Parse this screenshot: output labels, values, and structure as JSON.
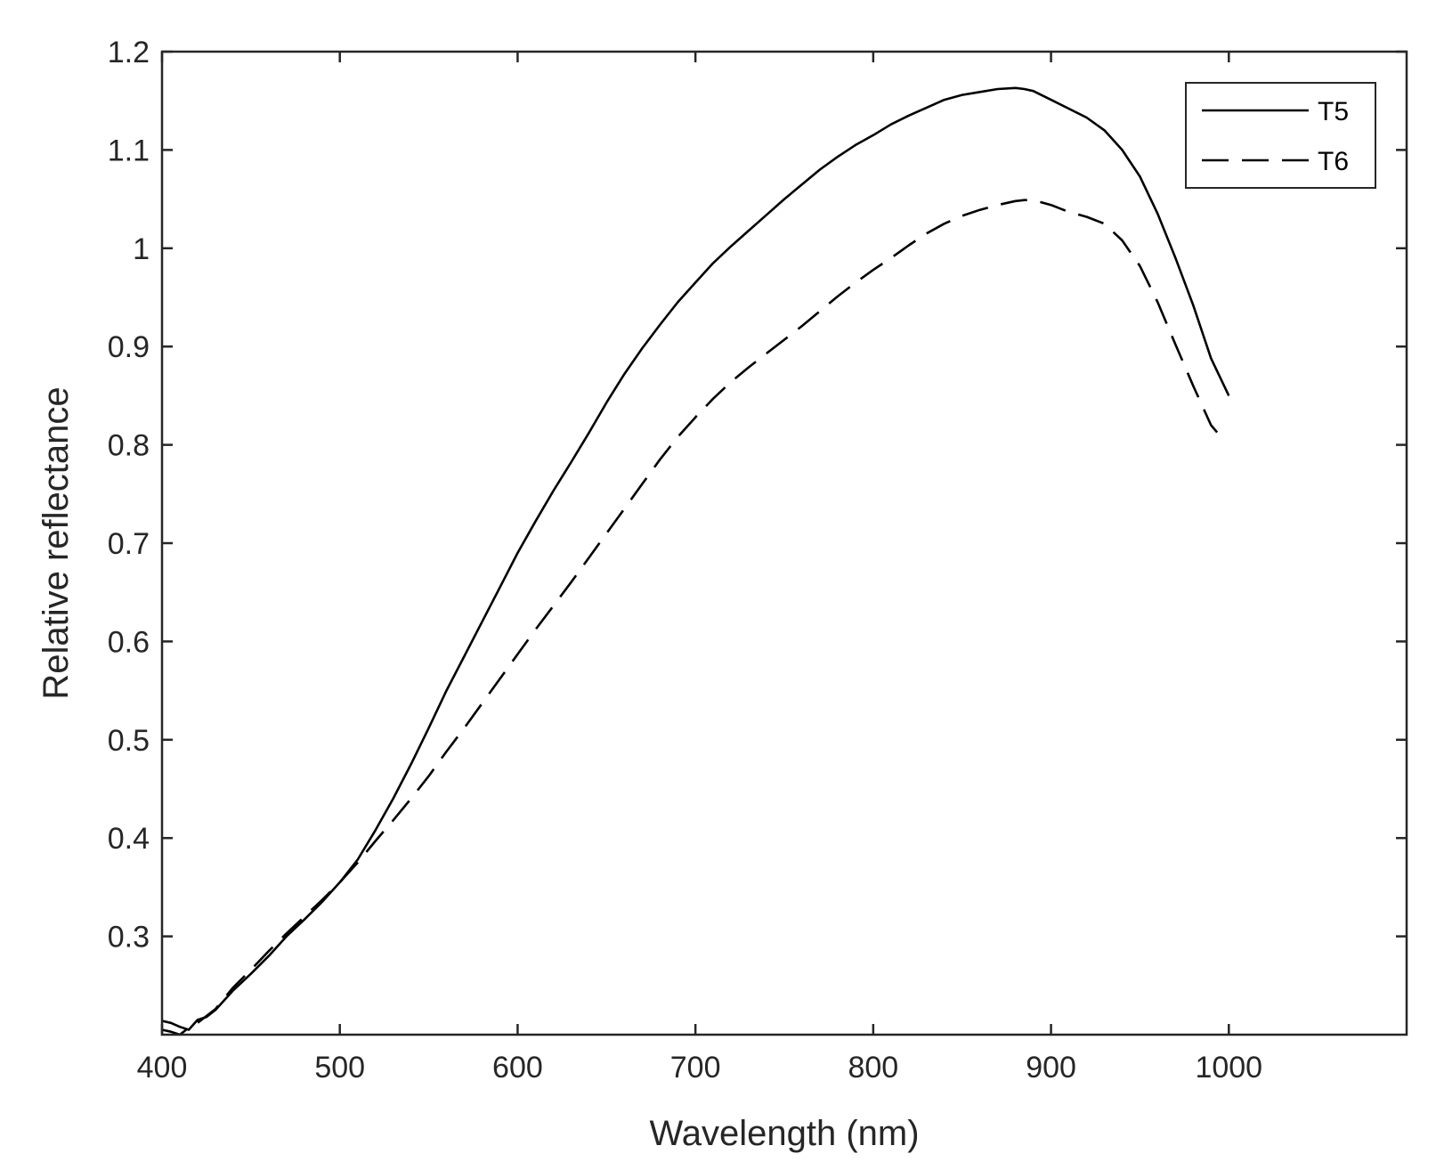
{
  "chart_data": {
    "type": "line",
    "title": "",
    "xlabel": "Wavelength (nm)",
    "ylabel": "Relative reflectance",
    "xlim": [
      400,
      1100
    ],
    "ylim": [
      0.2,
      1.2
    ],
    "xticks": [
      "400",
      "500",
      "600",
      "700",
      "800",
      "900",
      "1000"
    ],
    "yticks": [
      "0.3",
      "0.4",
      "0.5",
      "0.6",
      "0.7",
      "0.8",
      "0.9",
      "1",
      "1.1",
      "1.2"
    ],
    "grid": false,
    "legend_position": "top-right",
    "series": [
      {
        "name": "T5",
        "style": "solid",
        "color": "#000000",
        "x": [
          400,
          405,
          410,
          415,
          420,
          425,
          430,
          440,
          450,
          460,
          470,
          480,
          490,
          500,
          510,
          520,
          530,
          540,
          550,
          560,
          570,
          580,
          590,
          600,
          610,
          620,
          630,
          640,
          650,
          660,
          670,
          680,
          690,
          700,
          710,
          720,
          730,
          740,
          750,
          760,
          770,
          780,
          790,
          800,
          810,
          820,
          830,
          840,
          850,
          860,
          870,
          880,
          885,
          890,
          900,
          910,
          920,
          930,
          940,
          950,
          960,
          970,
          980,
          990,
          1000
        ],
        "y": [
          0.214,
          0.212,
          0.208,
          0.205,
          0.215,
          0.218,
          0.225,
          0.245,
          0.262,
          0.28,
          0.3,
          0.317,
          0.335,
          0.355,
          0.378,
          0.408,
          0.44,
          0.475,
          0.512,
          0.55,
          0.585,
          0.62,
          0.655,
          0.69,
          0.722,
          0.753,
          0.782,
          0.812,
          0.843,
          0.872,
          0.898,
          0.922,
          0.945,
          0.965,
          0.985,
          1.002,
          1.018,
          1.034,
          1.05,
          1.065,
          1.08,
          1.093,
          1.105,
          1.115,
          1.126,
          1.135,
          1.143,
          1.151,
          1.156,
          1.159,
          1.162,
          1.163,
          1.162,
          1.16,
          1.151,
          1.142,
          1.133,
          1.12,
          1.1,
          1.073,
          1.035,
          0.99,
          0.942,
          0.888,
          0.85
        ]
      },
      {
        "name": "T6",
        "style": "dashed",
        "color": "#000000",
        "x": [
          400,
          405,
          410,
          415,
          420,
          425,
          430,
          440,
          450,
          460,
          470,
          480,
          490,
          500,
          510,
          520,
          530,
          540,
          550,
          560,
          570,
          580,
          590,
          600,
          610,
          620,
          630,
          640,
          650,
          660,
          670,
          680,
          690,
          700,
          710,
          720,
          730,
          740,
          750,
          760,
          770,
          780,
          790,
          800,
          810,
          820,
          830,
          840,
          850,
          860,
          870,
          880,
          885,
          890,
          900,
          910,
          920,
          930,
          940,
          950,
          960,
          970,
          980,
          990,
          997
        ],
        "y": [
          0.205,
          0.203,
          0.2,
          0.207,
          0.212,
          0.219,
          0.226,
          0.248,
          0.266,
          0.285,
          0.303,
          0.32,
          0.337,
          0.355,
          0.375,
          0.397,
          0.418,
          0.44,
          0.463,
          0.488,
          0.512,
          0.537,
          0.562,
          0.587,
          0.612,
          0.636,
          0.66,
          0.685,
          0.71,
          0.735,
          0.76,
          0.785,
          0.808,
          0.828,
          0.847,
          0.864,
          0.879,
          0.893,
          0.907,
          0.921,
          0.936,
          0.951,
          0.965,
          0.978,
          0.99,
          1.003,
          1.015,
          1.025,
          1.033,
          1.039,
          1.044,
          1.048,
          1.049,
          1.049,
          1.044,
          1.037,
          1.032,
          1.025,
          1.008,
          0.982,
          0.945,
          0.902,
          0.86,
          0.82,
          0.805
        ]
      }
    ]
  }
}
